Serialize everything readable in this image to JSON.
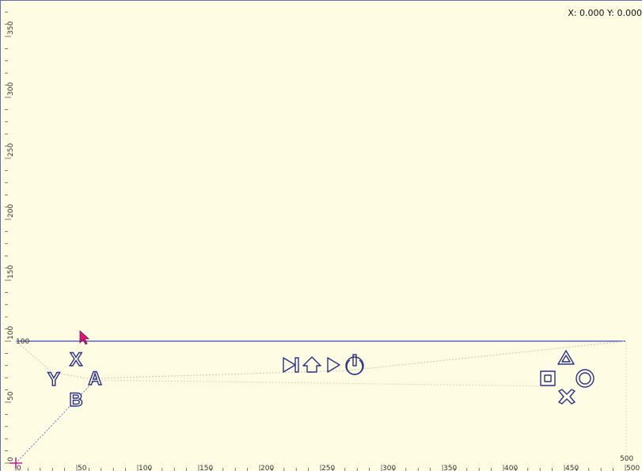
{
  "window": {
    "coord_readout": "X: 0.000 Y: 0.000"
  },
  "x_ruler": {
    "ticks": [
      0,
      50,
      100,
      150,
      200,
      250,
      300,
      350,
      400,
      450,
      500
    ]
  },
  "y_ruler": {
    "ticks": [
      0,
      50,
      100,
      150,
      200,
      250,
      300,
      350
    ]
  },
  "marker": {
    "value_label": "100"
  },
  "corner_label": "500",
  "buttons_left": {
    "x": "X",
    "y": "Y",
    "a": "A",
    "b": "B"
  },
  "colors": {
    "background": "#fefde3",
    "shape_stroke": "#2c2f8c",
    "guide": "#4a55c8",
    "cursor": "#d0147a"
  },
  "icons": [
    "skip-next-icon",
    "home-arrow-icon",
    "play-icon",
    "power-icon",
    "triangle-icon",
    "square-icon",
    "circle-icon",
    "cross-icon"
  ]
}
